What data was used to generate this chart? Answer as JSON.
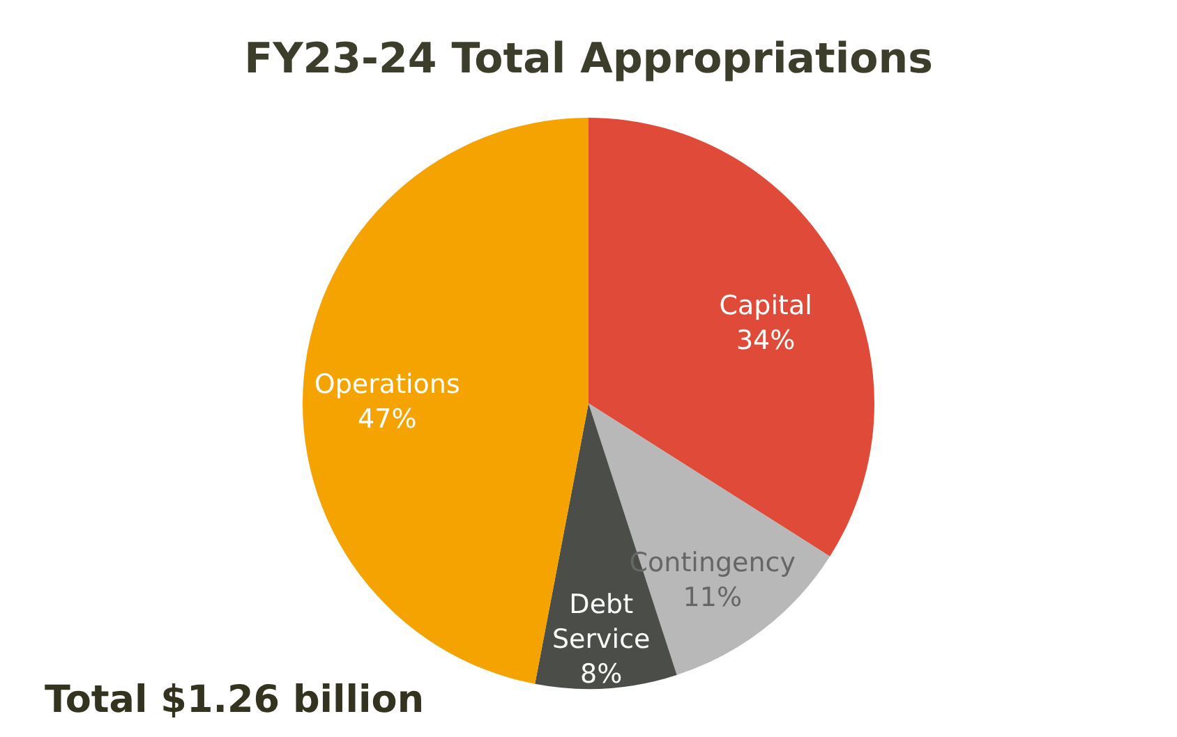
{
  "chart_data": {
    "type": "pie",
    "title": "FY23-24 Total Appropriations",
    "categories": [
      "Capital",
      "Contingency",
      "Debt Service",
      "Operations"
    ],
    "values": [
      34,
      11,
      8,
      47
    ],
    "value_labels": [
      "34%",
      "11%",
      "8%",
      "47%"
    ],
    "colors": [
      "#e04a38",
      "#b8b8b8",
      "#4b4e48",
      "#f5a300"
    ],
    "annotations": [
      "Total $1.26 billion"
    ]
  }
}
